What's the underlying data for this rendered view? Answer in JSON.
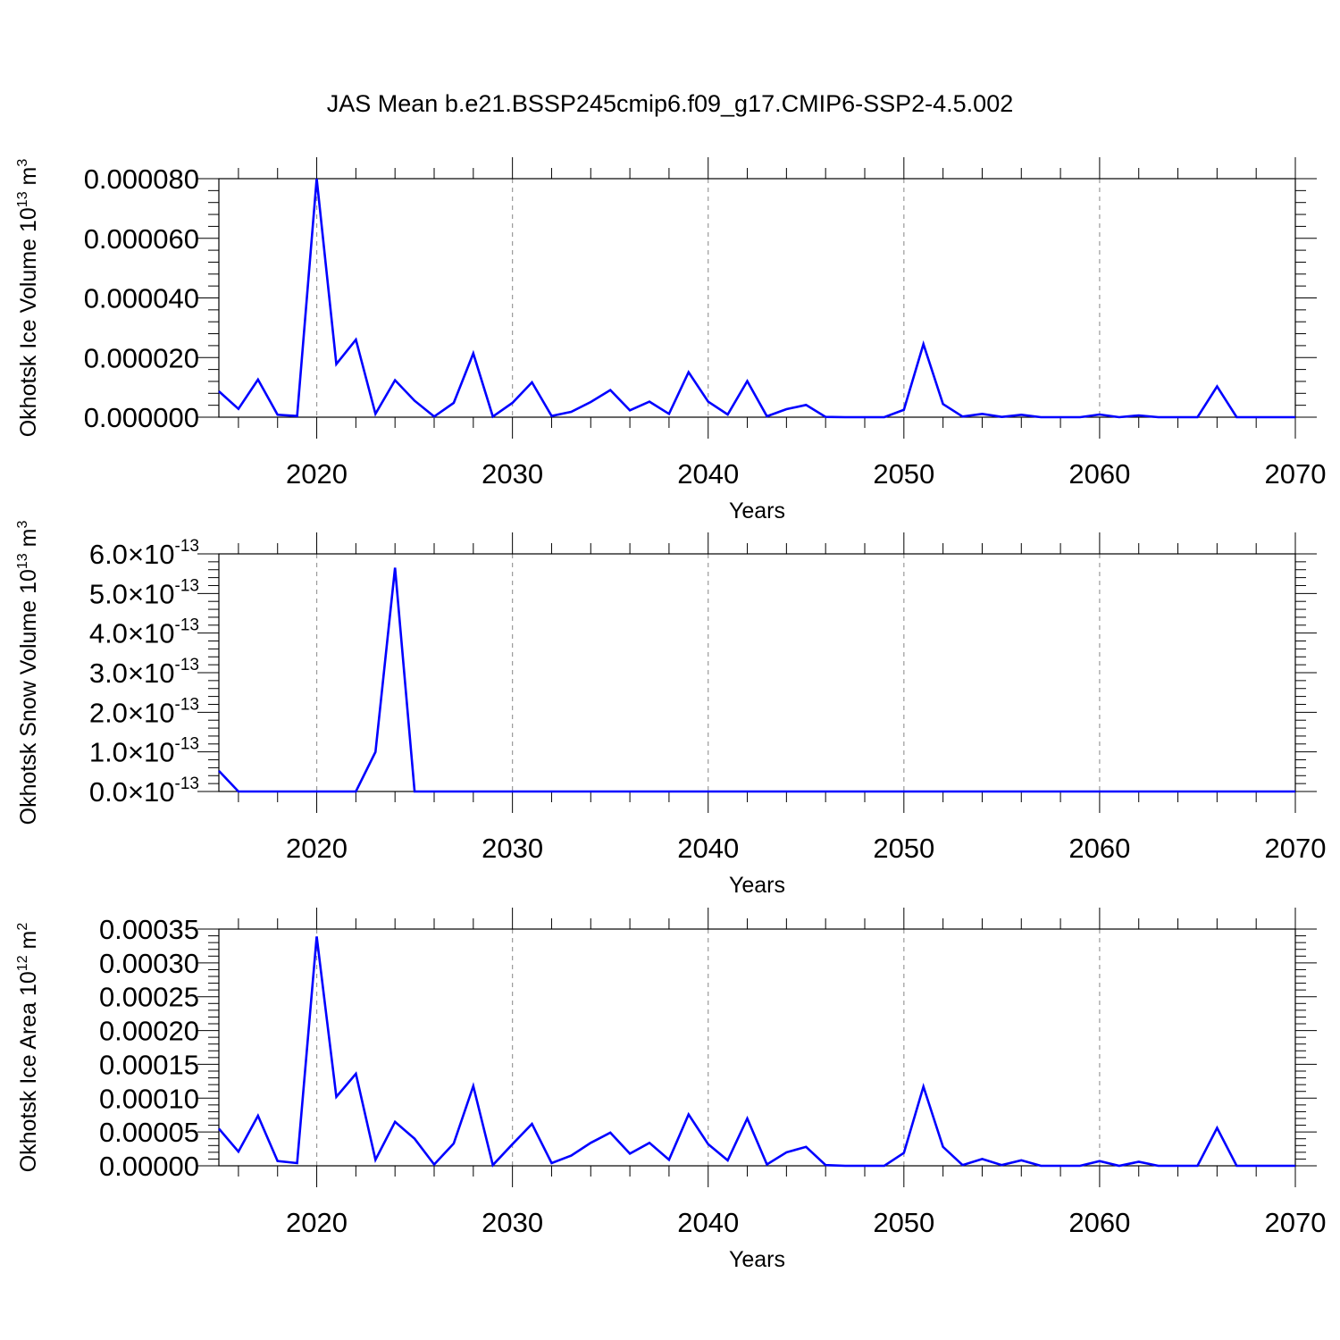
{
  "title": "JAS Mean b.e21.BSSP245cmip6.f09_g17.CMIP6-SSP2-4.5.002",
  "chart_data": [
    {
      "type": "line",
      "ylabel": "Okhotsk Ice Volume 10",
      "ylabel_exp": "13",
      "ylabel_unit": " m",
      "ylabel_unit_exp": "3",
      "xlabel": "Years",
      "xlim": [
        2015,
        2070
      ],
      "ylim": [
        0,
        8e-05
      ],
      "xticks": [
        "2020",
        "2030",
        "2040",
        "2050",
        "2060",
        "2070"
      ],
      "yticks": [
        {
          "v": 0,
          "label": "0.000000"
        },
        {
          "v": 2e-05,
          "label": "0.000020"
        },
        {
          "v": 4e-05,
          "label": "0.000040"
        },
        {
          "v": 6e-05,
          "label": "0.000060"
        },
        {
          "v": 8e-05,
          "label": "0.000080"
        }
      ],
      "line_color": "#0000ff",
      "x": [
        2015,
        2016,
        2017,
        2018,
        2019,
        2020,
        2021,
        2022,
        2023,
        2024,
        2025,
        2026,
        2027,
        2028,
        2029,
        2030,
        2031,
        2032,
        2033,
        2034,
        2035,
        2036,
        2037,
        2038,
        2039,
        2040,
        2041,
        2042,
        2043,
        2044,
        2045,
        2046,
        2047,
        2048,
        2049,
        2050,
        2051,
        2052,
        2053,
        2054,
        2055,
        2056,
        2057,
        2058,
        2059,
        2060,
        2061,
        2062,
        2063,
        2064,
        2065,
        2066,
        2067,
        2068,
        2069,
        2070
      ],
      "values": [
        8.7e-06,
        2.8e-06,
        1.26e-05,
        8e-07,
        4e-07,
        8e-05,
        1.78e-05,
        2.6e-05,
        1.1e-06,
        1.24e-05,
        5.5e-06,
        2e-07,
        4.8e-06,
        2.14e-05,
        2e-07,
        4.8e-06,
        1.17e-05,
        4e-07,
        1.8e-06,
        5.1e-06,
        9.1e-06,
        2.3e-06,
        5.2e-06,
        1.1e-06,
        1.51e-05,
        5.2e-06,
        9e-07,
        1.21e-05,
        3e-07,
        2.7e-06,
        4.1e-06,
        1e-07,
        0.0,
        0.0,
        0.0,
        2.5e-06,
        2.45e-05,
        4.4e-06,
        2e-07,
        1.1e-06,
        1e-07,
        8e-07,
        0.0,
        0.0,
        0.0,
        9e-07,
        0.0,
        6e-07,
        0.0,
        0.0,
        0.0,
        1.03e-05,
        0.0,
        0.0,
        0.0,
        0.0
      ]
    },
    {
      "type": "line",
      "ylabel": "Okhotsk Snow Volume 10",
      "ylabel_exp": "13",
      "ylabel_unit": " m",
      "ylabel_unit_exp": "3",
      "xlabel": "Years",
      "xlim": [
        2015,
        2070
      ],
      "ylim": [
        0,
        6e-13
      ],
      "xticks": [
        "2020",
        "2030",
        "2040",
        "2050",
        "2060",
        "2070"
      ],
      "yticks": [
        {
          "v": 0,
          "label": "0.0",
          "sci": "×10",
          "exp": "-13"
        },
        {
          "v": 1e-13,
          "label": "1.0",
          "sci": "×10",
          "exp": "-13"
        },
        {
          "v": 2e-13,
          "label": "2.0",
          "sci": "×10",
          "exp": "-13"
        },
        {
          "v": 3e-13,
          "label": "3.0",
          "sci": "×10",
          "exp": "-13"
        },
        {
          "v": 4e-13,
          "label": "4.0",
          "sci": "×10",
          "exp": "-13"
        },
        {
          "v": 5e-13,
          "label": "5.0",
          "sci": "×10",
          "exp": "-13"
        },
        {
          "v": 6e-13,
          "label": "6.0",
          "sci": "×10",
          "exp": "-13"
        }
      ],
      "line_color": "#0000ff",
      "x": [
        2015,
        2016,
        2017,
        2018,
        2019,
        2020,
        2021,
        2022,
        2023,
        2024,
        2025,
        2026,
        2027,
        2028,
        2029,
        2030,
        2031,
        2032,
        2033,
        2034,
        2035,
        2036,
        2037,
        2038,
        2039,
        2040,
        2041,
        2042,
        2043,
        2044,
        2045,
        2046,
        2047,
        2048,
        2049,
        2050,
        2051,
        2052,
        2053,
        2054,
        2055,
        2056,
        2057,
        2058,
        2059,
        2060,
        2061,
        2062,
        2063,
        2064,
        2065,
        2066,
        2067,
        2068,
        2069,
        2070
      ],
      "values": [
        5.2e-14,
        0,
        0,
        0,
        0,
        0,
        0,
        0,
        1e-13,
        5.65e-13,
        0,
        0,
        0,
        0,
        0,
        0,
        0,
        0,
        0,
        0,
        0,
        0,
        0,
        0,
        0,
        0,
        0,
        0,
        0,
        0,
        0,
        0,
        0,
        0,
        0,
        0,
        0,
        0,
        0,
        0,
        0,
        0,
        0,
        0,
        0,
        0,
        0,
        0,
        0,
        0,
        0,
        0,
        0,
        0,
        0,
        0
      ]
    },
    {
      "type": "line",
      "ylabel": "Okhotsk Ice Area 10",
      "ylabel_exp": "12",
      "ylabel_unit": " m",
      "ylabel_unit_exp": "2",
      "xlabel": "Years",
      "xlim": [
        2015,
        2070
      ],
      "ylim": [
        0,
        0.00035
      ],
      "xticks": [
        "2020",
        "2030",
        "2040",
        "2050",
        "2060",
        "2070"
      ],
      "yticks": [
        {
          "v": 0,
          "label": "0.00000"
        },
        {
          "v": 5e-05,
          "label": "0.00005"
        },
        {
          "v": 0.0001,
          "label": "0.00010"
        },
        {
          "v": 0.00015,
          "label": "0.00015"
        },
        {
          "v": 0.0002,
          "label": "0.00020"
        },
        {
          "v": 0.00025,
          "label": "0.00025"
        },
        {
          "v": 0.0003,
          "label": "0.00030"
        },
        {
          "v": 0.00035,
          "label": "0.00035"
        }
      ],
      "line_color": "#0000ff",
      "x": [
        2015,
        2016,
        2017,
        2018,
        2019,
        2020,
        2021,
        2022,
        2023,
        2024,
        2025,
        2026,
        2027,
        2028,
        2029,
        2030,
        2031,
        2032,
        2033,
        2034,
        2035,
        2036,
        2037,
        2038,
        2039,
        2040,
        2041,
        2042,
        2043,
        2044,
        2045,
        2046,
        2047,
        2048,
        2049,
        2050,
        2051,
        2052,
        2053,
        2054,
        2055,
        2056,
        2057,
        2058,
        2059,
        2060,
        2061,
        2062,
        2063,
        2064,
        2065,
        2066,
        2067,
        2068,
        2069,
        2070
      ],
      "values": [
        5.5e-05,
        2.1e-05,
        7.4e-05,
        7e-06,
        4e-06,
        0.000339,
        0.000102,
        0.000136,
        9e-06,
        6.5e-05,
        4e-05,
        2e-06,
        3.3e-05,
        0.000118,
        1e-06,
        3.2e-05,
        6.2e-05,
        4e-06,
        1.5e-05,
        3.4e-05,
        4.9e-05,
        1.8e-05,
        3.4e-05,
        9e-06,
        7.6e-05,
        3.2e-05,
        8e-06,
        7e-05,
        2e-06,
        2e-05,
        2.8e-05,
        1e-06,
        0.0,
        0.0,
        0.0,
        1.9e-05,
        0.000117,
        2.8e-05,
        1e-06,
        1e-05,
        1e-06,
        8e-06,
        0.0,
        0.0,
        0.0,
        7e-06,
        0.0,
        6e-06,
        0.0,
        0.0,
        0.0,
        5.6e-05,
        0.0,
        0.0,
        0.0,
        0.0
      ]
    }
  ]
}
